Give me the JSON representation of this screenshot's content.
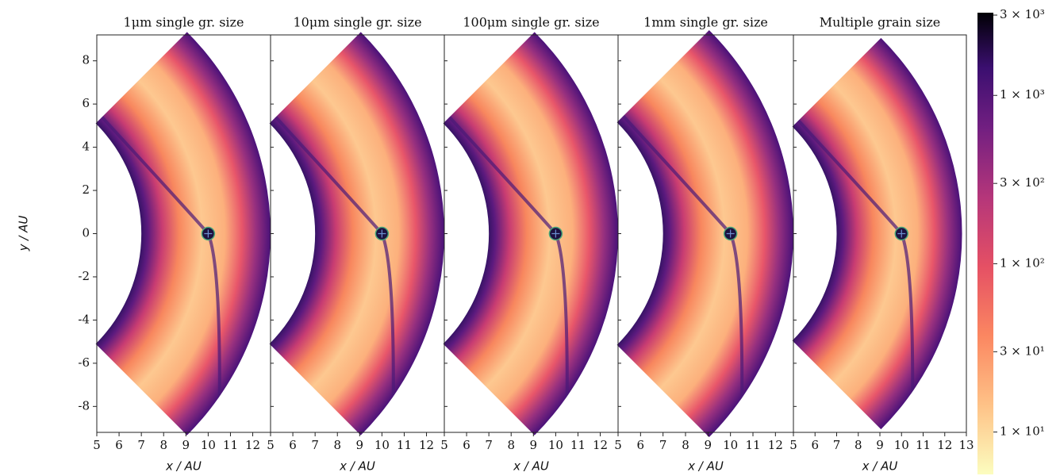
{
  "chart_data": [
    {
      "type": "heatmap",
      "title": "1μm single gr. size",
      "xlabel": "x / AU",
      "ylabel": "y / AU",
      "xlim": [
        5,
        12.8
      ],
      "xticks": [
        5,
        6,
        7,
        8,
        9,
        10,
        11,
        12
      ],
      "ylim": [
        -9.2,
        9.2
      ],
      "yticks": [
        -8,
        -6,
        -4,
        -2,
        0,
        2,
        4,
        6,
        8
      ]
    },
    {
      "type": "heatmap",
      "title": "10μm single gr. size",
      "xlabel": "x / AU",
      "xlim": [
        5,
        12.8
      ],
      "xticks": [
        5,
        6,
        7,
        8,
        9,
        10,
        11,
        12
      ],
      "ylim": [
        -9.2,
        9.2
      ],
      "yticks": [
        -8,
        -6,
        -4,
        -2,
        0,
        2,
        4,
        6,
        8
      ]
    },
    {
      "type": "heatmap",
      "title": "100μm single gr. size",
      "xlabel": "x / AU",
      "xlim": [
        5,
        12.8
      ],
      "xticks": [
        5,
        6,
        7,
        8,
        9,
        10,
        11,
        12
      ],
      "ylim": [
        -9.2,
        9.2
      ],
      "yticks": [
        -8,
        -6,
        -4,
        -2,
        0,
        2,
        4,
        6,
        8
      ]
    },
    {
      "type": "heatmap",
      "title": "1mm single gr. size",
      "xlabel": "x / AU",
      "xlim": [
        5,
        12.8
      ],
      "xticks": [
        5,
        6,
        7,
        8,
        9,
        10,
        11,
        12
      ],
      "ylim": [
        -9.2,
        9.2
      ],
      "yticks": [
        -8,
        -6,
        -4,
        -2,
        0,
        2,
        4,
        6,
        8
      ]
    },
    {
      "type": "heatmap",
      "title": "Multiple grain size",
      "xlabel": "x / AU",
      "xlim": [
        5,
        13
      ],
      "xticks": [
        5,
        6,
        7,
        8,
        9,
        10,
        11,
        12,
        13
      ],
      "ylim": [
        -9.2,
        9.2
      ],
      "yticks": [
        -8,
        -6,
        -4,
        -2,
        0,
        2,
        4,
        6,
        8
      ]
    },
    {
      "type": "colorbar",
      "log": true,
      "colormap": "magma_r",
      "ylim": [
        5.6,
        3100
      ],
      "yticks": [
        {
          "value": 3000,
          "label": "3 × 10³"
        },
        {
          "value": 1000,
          "label": "1 × 10³"
        },
        {
          "value": 300,
          "label": "3 × 10²"
        },
        {
          "value": 100,
          "label": "1 × 10²"
        },
        {
          "value": 30,
          "label": "3 × 10¹"
        },
        {
          "value": 10,
          "label": "1 × 10¹"
        }
      ]
    }
  ]
}
